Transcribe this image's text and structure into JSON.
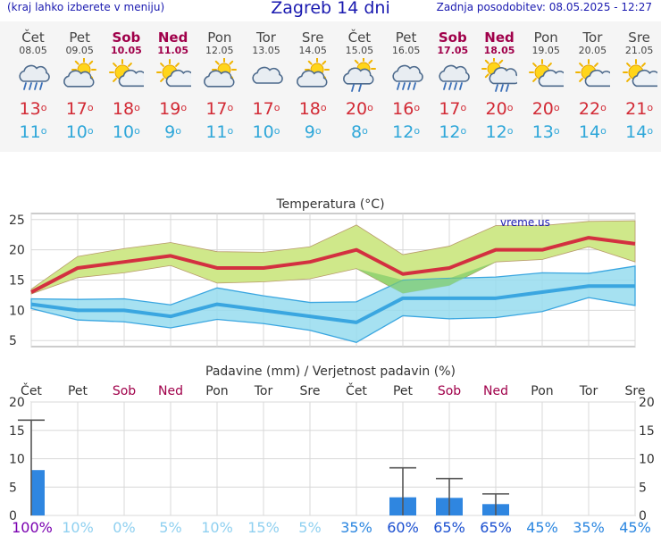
{
  "header": {
    "menu_hint": "(kraj lahko izberete v meniju)",
    "title": "Zagreb 14 dni",
    "updated": "Zadnja posodobitev: 08.05.2025 - 12:27"
  },
  "days": [
    {
      "name": "Čet",
      "date": "08.05",
      "weekend": false,
      "icon": "rain-cloud-icon",
      "tmax": "13",
      "tmin": "11"
    },
    {
      "name": "Pet",
      "date": "09.05",
      "weekend": false,
      "icon": "sun-behind-cloud-icon",
      "tmax": "17",
      "tmin": "10"
    },
    {
      "name": "Sob",
      "date": "10.05",
      "weekend": true,
      "icon": "sun-small-cloud-icon",
      "tmax": "18",
      "tmin": "10"
    },
    {
      "name": "Ned",
      "date": "11.05",
      "weekend": true,
      "icon": "sun-small-cloud-icon",
      "tmax": "19",
      "tmin": "9"
    },
    {
      "name": "Pon",
      "date": "12.05",
      "weekend": false,
      "icon": "sun-behind-cloud-icon",
      "tmax": "17",
      "tmin": "11"
    },
    {
      "name": "Tor",
      "date": "13.05",
      "weekend": false,
      "icon": "cloud-icon",
      "tmax": "17",
      "tmin": "10"
    },
    {
      "name": "Sre",
      "date": "14.05",
      "weekend": false,
      "icon": "sun-behind-cloud-icon",
      "tmax": "18",
      "tmin": "9"
    },
    {
      "name": "Čet",
      "date": "15.05",
      "weekend": false,
      "icon": "sun-behind-rain-cloud-icon",
      "tmax": "20",
      "tmin": "8"
    },
    {
      "name": "Pet",
      "date": "16.05",
      "weekend": false,
      "icon": "rain-cloud-icon",
      "tmax": "16",
      "tmin": "12"
    },
    {
      "name": "Sob",
      "date": "17.05",
      "weekend": true,
      "icon": "rain-cloud-icon",
      "tmax": "17",
      "tmin": "12"
    },
    {
      "name": "Ned",
      "date": "18.05",
      "weekend": true,
      "icon": "sun-rain-cloud-icon",
      "tmax": "20",
      "tmin": "12"
    },
    {
      "name": "Pon",
      "date": "19.05",
      "weekend": false,
      "icon": "sun-small-cloud-icon",
      "tmax": "20",
      "tmin": "13"
    },
    {
      "name": "Tor",
      "date": "20.05",
      "weekend": false,
      "icon": "sun-small-cloud-icon",
      "tmax": "22",
      "tmin": "14"
    },
    {
      "name": "Sre",
      "date": "21.05",
      "weekend": false,
      "icon": "sun-small-cloud-icon",
      "tmax": "21",
      "tmin": "14"
    }
  ],
  "chart_data": [
    {
      "type": "line",
      "title": "Temperatura (°C)",
      "watermark": "vreme.us",
      "ylim": [
        4,
        26
      ],
      "yticks": [
        5,
        10,
        15,
        20,
        25
      ],
      "grid": true,
      "colors": {
        "max": "#d33040",
        "max_band": "#cfe88a",
        "min": "#3aa6e0",
        "min_band": "#96dcef",
        "overlap": "#7fcc6a"
      },
      "series": [
        {
          "values": [
            13,
            17,
            18,
            19,
            17,
            17,
            18,
            20,
            16,
            17,
            20,
            20,
            22,
            21
          ]
        },
        {
          "values": [
            12.7,
            15.4,
            16.2,
            17.4,
            14.5,
            14.7,
            15.2,
            16.9,
            12.8,
            14.1,
            18.0,
            18.4,
            20.5,
            18.0
          ]
        },
        {
          "values": [
            13.5,
            18.9,
            20.2,
            21.2,
            19.7,
            19.6,
            20.5,
            24.1,
            19.2,
            20.6,
            24.0,
            24.0,
            24.7,
            24.8
          ]
        },
        {
          "values": [
            11,
            10,
            10,
            9,
            11,
            10,
            9,
            8,
            12,
            12,
            12,
            13,
            14,
            14
          ]
        },
        {
          "values": [
            10.3,
            8.4,
            8.1,
            7.1,
            8.5,
            7.8,
            6.7,
            4.7,
            9.1,
            8.6,
            8.8,
            9.8,
            12.1,
            10.8
          ]
        },
        {
          "values": [
            11.9,
            11.8,
            11.9,
            10.9,
            13.7,
            12.4,
            11.3,
            11.4,
            15.0,
            15.3,
            15.5,
            16.2,
            16.1,
            17.3
          ]
        }
      ]
    },
    {
      "type": "bar",
      "title": "Padavine (mm) / Verjetnost padavin (%)",
      "ylim": [
        0,
        20
      ],
      "yticks": [
        0,
        5,
        10,
        15,
        20
      ],
      "grid": true,
      "categories": [
        "Čet",
        "Pet",
        "Sob",
        "Ned",
        "Pon",
        "Tor",
        "Sre",
        "Čet",
        "Pet",
        "Sob",
        "Ned",
        "Pon",
        "Tor",
        "Sre"
      ],
      "values": [
        8,
        0,
        0,
        0,
        0,
        0,
        0,
        0,
        3.2,
        3.1,
        2.0,
        0,
        0,
        0
      ],
      "error_high": [
        16.8,
        null,
        null,
        null,
        null,
        null,
        null,
        null,
        8.4,
        6.5,
        3.8,
        null,
        null,
        null
      ],
      "probability": [
        "100%",
        "10%",
        "0%",
        "5%",
        "10%",
        "15%",
        "5%",
        "35%",
        "60%",
        "65%",
        "65%",
        "45%",
        "35%",
        "45%"
      ]
    }
  ]
}
